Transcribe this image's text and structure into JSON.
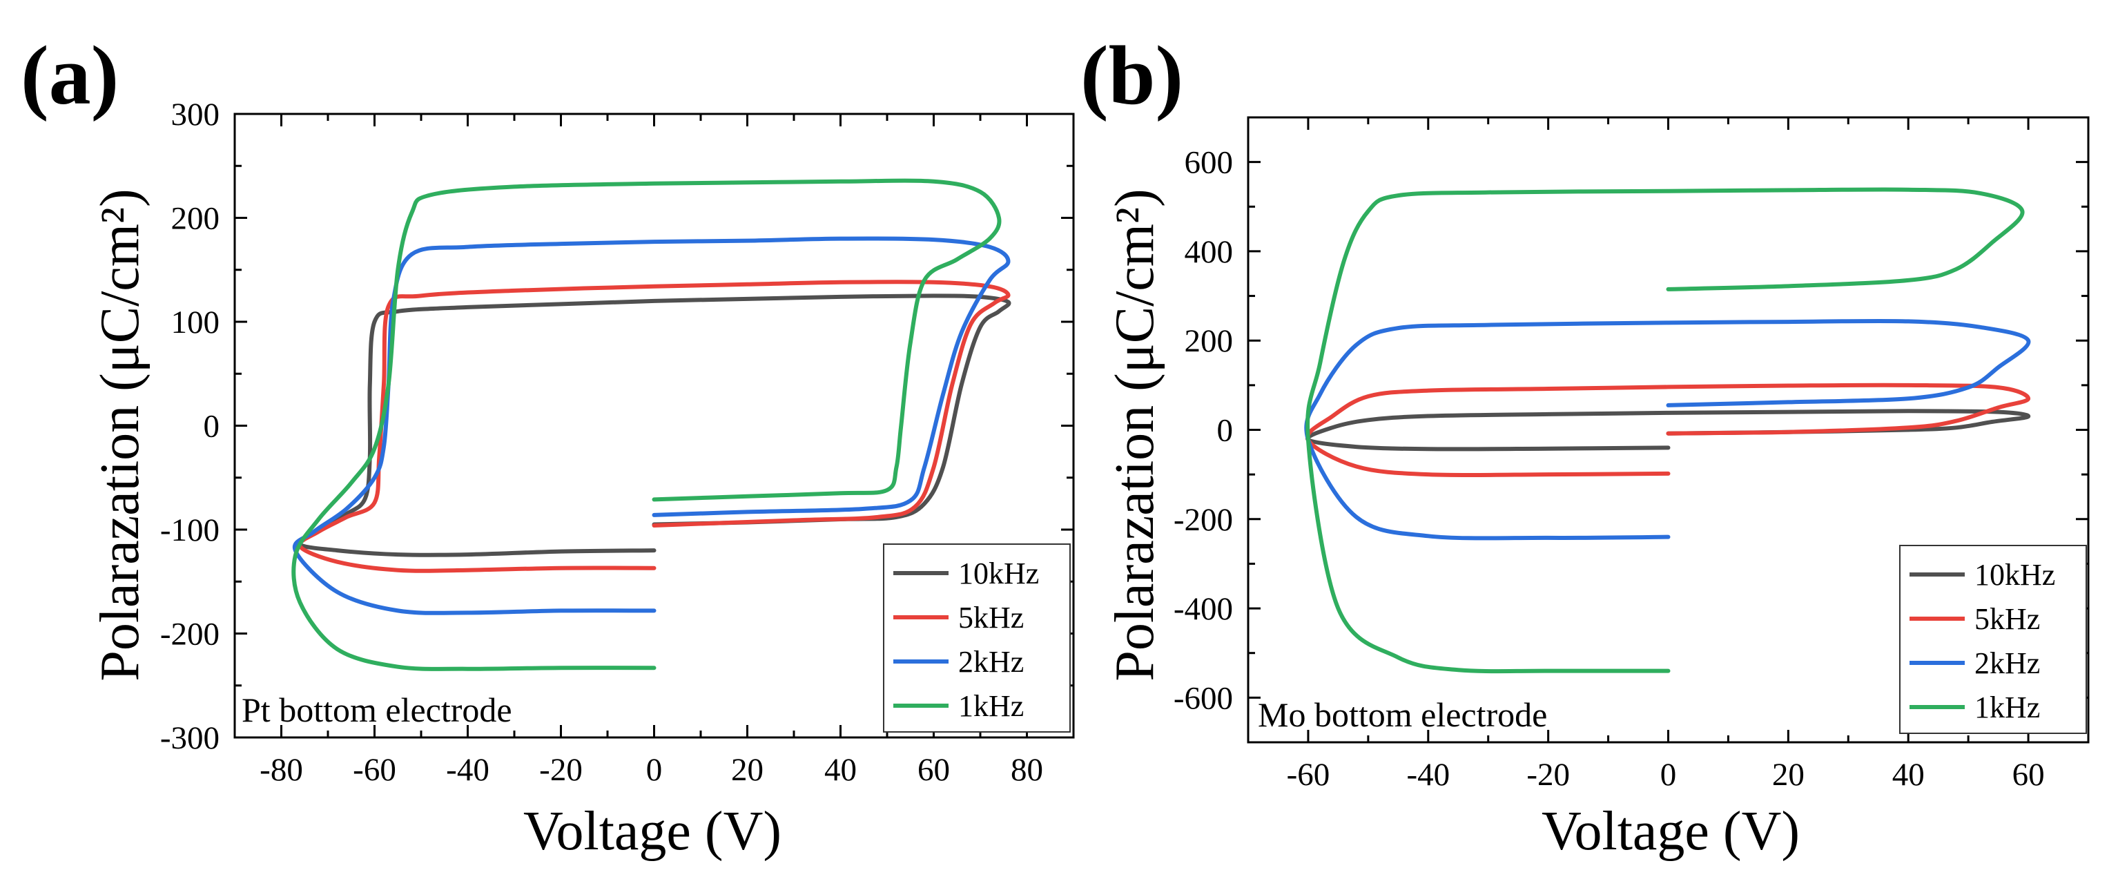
{
  "figure": {
    "panels": [
      "(a)",
      "(b)"
    ]
  },
  "chart_data": [
    {
      "type": "line",
      "panel_label": "(a)",
      "title": "",
      "annotation": "Pt bottom electrode",
      "xlabel": "Voltage (V)",
      "ylabel": "Polarazation (μC/cm²)",
      "xlim": [
        -90,
        90
      ],
      "ylim": [
        -300,
        300
      ],
      "xticks": [
        -80,
        -60,
        -40,
        -20,
        0,
        20,
        40,
        60,
        80
      ],
      "yticks": [
        -300,
        -200,
        -100,
        0,
        100,
        200,
        300
      ],
      "legend": [
        "10kHz",
        "5kHz",
        "2kHz",
        "1kHz"
      ],
      "legend_position": "bottom-right",
      "series": [
        {
          "name": "10kHz",
          "color": "#505050",
          "points": [
            [
              0,
              -120
            ],
            [
              -20,
              -121
            ],
            [
              -40,
              -124
            ],
            [
              -55,
              -124
            ],
            [
              -68,
              -120
            ],
            [
              -76,
              -114
            ],
            [
              -72,
              -100
            ],
            [
              -66,
              -85
            ],
            [
              -62,
              -70
            ],
            [
              -61,
              -30
            ],
            [
              -61,
              40
            ],
            [
              -60,
              100
            ],
            [
              -55,
              110
            ],
            [
              -40,
              114
            ],
            [
              -20,
              117
            ],
            [
              0,
              120
            ],
            [
              20,
              122
            ],
            [
              40,
              124
            ],
            [
              60,
              125
            ],
            [
              70,
              124
            ],
            [
              76,
              119
            ],
            [
              74,
              110
            ],
            [
              70,
              95
            ],
            [
              66,
              40
            ],
            [
              62,
              -40
            ],
            [
              58,
              -75
            ],
            [
              52,
              -88
            ],
            [
              40,
              -90
            ],
            [
              20,
              -93
            ],
            [
              0,
              -95
            ]
          ]
        },
        {
          "name": "5kHz",
          "color": "#e8413a",
          "points": [
            [
              0,
              -137
            ],
            [
              -20,
              -137
            ],
            [
              -40,
              -139
            ],
            [
              -55,
              -139
            ],
            [
              -68,
              -131
            ],
            [
              -76,
              -116
            ],
            [
              -72,
              -102
            ],
            [
              -66,
              -88
            ],
            [
              -60,
              -74
            ],
            [
              -59,
              -30
            ],
            [
              -58,
              40
            ],
            [
              -57,
              115
            ],
            [
              -50,
              125
            ],
            [
              -30,
              130
            ],
            [
              0,
              134
            ],
            [
              20,
              136
            ],
            [
              40,
              138
            ],
            [
              60,
              138
            ],
            [
              72,
              134
            ],
            [
              76,
              126
            ],
            [
              73,
              118
            ],
            [
              68,
              98
            ],
            [
              64,
              40
            ],
            [
              60,
              -40
            ],
            [
              56,
              -78
            ],
            [
              48,
              -88
            ],
            [
              30,
              -91
            ],
            [
              0,
              -96
            ]
          ]
        },
        {
          "name": "2kHz",
          "color": "#2b6fdc",
          "points": [
            [
              0,
              -178
            ],
            [
              -20,
              -178
            ],
            [
              -40,
              -180
            ],
            [
              -55,
              -178
            ],
            [
              -68,
              -160
            ],
            [
              -77,
              -120
            ],
            [
              -73,
              -102
            ],
            [
              -66,
              -80
            ],
            [
              -60,
              -50
            ],
            [
              -58,
              -20
            ],
            [
              -57,
              40
            ],
            [
              -56,
              120
            ],
            [
              -52,
              165
            ],
            [
              -40,
              172
            ],
            [
              -20,
              175
            ],
            [
              0,
              177
            ],
            [
              20,
              178
            ],
            [
              40,
              180
            ],
            [
              60,
              179
            ],
            [
              72,
              172
            ],
            [
              76,
              158
            ],
            [
              72,
              140
            ],
            [
              66,
              90
            ],
            [
              62,
              30
            ],
            [
              58,
              -40
            ],
            [
              55,
              -72
            ],
            [
              45,
              -80
            ],
            [
              20,
              -83
            ],
            [
              0,
              -86
            ]
          ]
        },
        {
          "name": "1kHz",
          "color": "#2fae5e",
          "points": [
            [
              0,
              -233
            ],
            [
              -20,
              -233
            ],
            [
              -40,
              -234
            ],
            [
              -55,
              -232
            ],
            [
              -68,
              -215
            ],
            [
              -76,
              -170
            ],
            [
              -77,
              -125
            ],
            [
              -72,
              -90
            ],
            [
              -65,
              -55
            ],
            [
              -60,
              -22
            ],
            [
              -57,
              40
            ],
            [
              -55,
              150
            ],
            [
              -52,
              205
            ],
            [
              -48,
              222
            ],
            [
              -30,
              230
            ],
            [
              0,
              233
            ],
            [
              20,
              234
            ],
            [
              40,
              235
            ],
            [
              60,
              235
            ],
            [
              70,
              225
            ],
            [
              74,
              200
            ],
            [
              72,
              180
            ],
            [
              65,
              160
            ],
            [
              58,
              140
            ],
            [
              55,
              80
            ],
            [
              53,
              0
            ],
            [
              52,
              -40
            ],
            [
              50,
              -62
            ],
            [
              40,
              -65
            ],
            [
              20,
              -68
            ],
            [
              0,
              -71
            ]
          ]
        }
      ]
    },
    {
      "type": "line",
      "panel_label": "(b)",
      "title": "",
      "annotation": "Mo bottom electrode",
      "xlabel": "Voltage (V)",
      "ylabel": "Polarazation (μC/cm²)",
      "xlim": [
        -70,
        70
      ],
      "ylim": [
        -700,
        700
      ],
      "xticks": [
        -60,
        -40,
        -20,
        0,
        20,
        40,
        60
      ],
      "yticks": [
        -600,
        -400,
        -200,
        0,
        200,
        400,
        600
      ],
      "legend": [
        "10kHz",
        "5kHz",
        "2kHz",
        "1kHz"
      ],
      "legend_position": "bottom-right",
      "series": [
        {
          "name": "10kHz",
          "color": "#505050",
          "points": [
            [
              0,
              -40
            ],
            [
              -20,
              -42
            ],
            [
              -40,
              -43
            ],
            [
              -52,
              -38
            ],
            [
              -60,
              -22
            ],
            [
              -56,
              5
            ],
            [
              -50,
              22
            ],
            [
              -40,
              31
            ],
            [
              -20,
              35
            ],
            [
              0,
              38
            ],
            [
              20,
              40
            ],
            [
              40,
              42
            ],
            [
              55,
              40
            ],
            [
              60,
              30
            ],
            [
              54,
              18
            ],
            [
              48,
              5
            ],
            [
              40,
              0
            ],
            [
              20,
              -5
            ],
            [
              0,
              -8
            ]
          ]
        },
        {
          "name": "5kHz",
          "color": "#e8413a",
          "points": [
            [
              0,
              -98
            ],
            [
              -20,
              -100
            ],
            [
              -40,
              -100
            ],
            [
              -52,
              -82
            ],
            [
              -60,
              -22
            ],
            [
              -56,
              30
            ],
            [
              -50,
              75
            ],
            [
              -40,
              88
            ],
            [
              -20,
              92
            ],
            [
              0,
              96
            ],
            [
              20,
              99
            ],
            [
              40,
              100
            ],
            [
              55,
              95
            ],
            [
              60,
              70
            ],
            [
              55,
              50
            ],
            [
              48,
              20
            ],
            [
              40,
              5
            ],
            [
              20,
              -5
            ],
            [
              0,
              -8
            ]
          ]
        },
        {
          "name": "2kHz",
          "color": "#2b6fdc",
          "points": [
            [
              0,
              -240
            ],
            [
              -20,
              -242
            ],
            [
              -40,
              -238
            ],
            [
              -52,
              -195
            ],
            [
              -60,
              -22
            ],
            [
              -58,
              80
            ],
            [
              -52,
              190
            ],
            [
              -45,
              228
            ],
            [
              -30,
              235
            ],
            [
              0,
              240
            ],
            [
              20,
              242
            ],
            [
              40,
              243
            ],
            [
              52,
              230
            ],
            [
              60,
              200
            ],
            [
              55,
              140
            ],
            [
              50,
              95
            ],
            [
              40,
              70
            ],
            [
              20,
              62
            ],
            [
              0,
              55
            ]
          ]
        },
        {
          "name": "1kHz",
          "color": "#2fae5e",
          "points": [
            [
              0,
              -540
            ],
            [
              -20,
              -540
            ],
            [
              -35,
              -538
            ],
            [
              -45,
              -510
            ],
            [
              -55,
              -400
            ],
            [
              -60,
              -22
            ],
            [
              -58,
              150
            ],
            [
              -54,
              380
            ],
            [
              -50,
              490
            ],
            [
              -45,
              525
            ],
            [
              -30,
              532
            ],
            [
              0,
              535
            ],
            [
              20,
              537
            ],
            [
              40,
              538
            ],
            [
              52,
              530
            ],
            [
              59,
              490
            ],
            [
              54,
              420
            ],
            [
              48,
              360
            ],
            [
              40,
              335
            ],
            [
              20,
              322
            ],
            [
              0,
              315
            ]
          ]
        }
      ]
    }
  ]
}
